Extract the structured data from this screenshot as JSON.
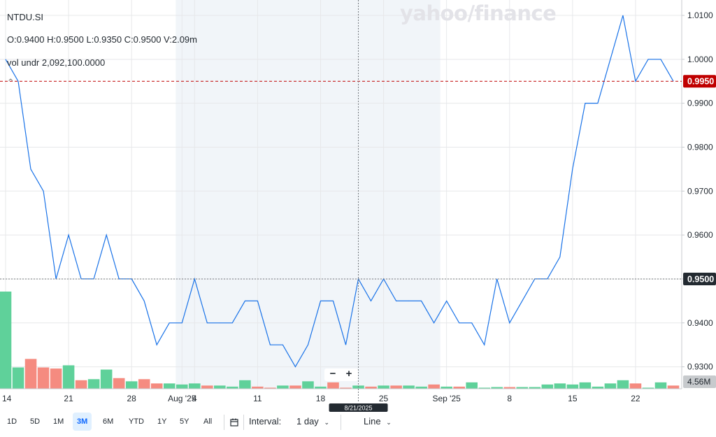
{
  "watermark": "yahoo/finance",
  "info": {
    "symbol": "NTDU.SI",
    "ohlc": "O:0.9400   H:0.9500   L:0.9350   C:0.9500   V:2.09m",
    "volume_line": "vol undr   2,092,100.0000"
  },
  "chart_data": {
    "type": "line",
    "symbol": "NTDU.SI",
    "x": [
      "2025-07-14",
      "2025-07-15",
      "2025-07-16",
      "2025-07-17",
      "2025-07-18",
      "2025-07-21",
      "2025-07-22",
      "2025-07-23",
      "2025-07-24",
      "2025-07-25",
      "2025-07-28",
      "2025-07-29",
      "2025-07-30",
      "2025-07-31",
      "2025-08-01",
      "2025-08-04",
      "2025-08-05",
      "2025-08-06",
      "2025-08-07",
      "2025-08-08",
      "2025-08-11",
      "2025-08-12",
      "2025-08-13",
      "2025-08-14",
      "2025-08-15",
      "2025-08-18",
      "2025-08-19",
      "2025-08-20",
      "2025-08-21",
      "2025-08-22",
      "2025-08-25",
      "2025-08-26",
      "2025-08-27",
      "2025-08-28",
      "2025-08-29",
      "2025-09-01",
      "2025-09-02",
      "2025-09-03",
      "2025-09-04",
      "2025-09-05",
      "2025-09-08",
      "2025-09-09",
      "2025-09-10",
      "2025-09-11",
      "2025-09-12",
      "2025-09-15",
      "2025-09-16",
      "2025-09-17",
      "2025-09-18",
      "2025-09-19",
      "2025-09-22",
      "2025-09-23",
      "2025-09-24",
      "2025-09-25"
    ],
    "series": [
      {
        "values": [
          1.0,
          0.995,
          0.975,
          0.97,
          0.95,
          0.96,
          0.95,
          0.95,
          0.96,
          0.95,
          0.95,
          0.945,
          0.935,
          0.94,
          0.94,
          0.95,
          0.94,
          0.94,
          0.94,
          0.945,
          0.945,
          0.935,
          0.935,
          0.93,
          0.935,
          0.945,
          0.945,
          0.935,
          0.95,
          0.945,
          0.95,
          0.945,
          0.945,
          0.945,
          0.94,
          0.945,
          0.94,
          0.94,
          0.935,
          0.95,
          0.94,
          0.945,
          0.95,
          0.95,
          0.955,
          0.975,
          0.99,
          0.99,
          1.0,
          1.01,
          0.995,
          1.0,
          1.0,
          0.995
        ],
        "color": "#1a73e8"
      }
    ],
    "volume": {
      "values": [
        4.56,
        1.0,
        1.4,
        1.0,
        0.95,
        1.1,
        0.4,
        0.45,
        0.9,
        0.5,
        0.35,
        0.45,
        0.25,
        0.25,
        0.2,
        0.25,
        0.15,
        0.15,
        0.1,
        0.4,
        0.1,
        0.05,
        0.15,
        0.15,
        0.35,
        0.1,
        0.3,
        0.05,
        0.15,
        0.1,
        0.15,
        0.15,
        0.15,
        0.1,
        0.2,
        0.1,
        0.1,
        0.3,
        0.05,
        0.08,
        0.08,
        0.08,
        0.08,
        0.2,
        0.25,
        0.2,
        0.3,
        0.1,
        0.25,
        0.4,
        0.25,
        0.05,
        0.3,
        0.15
      ],
      "directions": [
        "up",
        "up",
        "down",
        "down",
        "down",
        "up",
        "down",
        "up",
        "up",
        "down",
        "up",
        "down",
        "down",
        "up",
        "up",
        "up",
        "down",
        "up",
        "up",
        "up",
        "down",
        "down",
        "up",
        "down",
        "up",
        "up",
        "down",
        "down",
        "up",
        "down",
        "up",
        "down",
        "up",
        "up",
        "down",
        "up",
        "down",
        "up",
        "up",
        "up",
        "down",
        "up",
        "up",
        "up",
        "up",
        "up",
        "up",
        "up",
        "up",
        "up",
        "down",
        "up",
        "up",
        "down"
      ],
      "up_color": "#5fd19a",
      "down_color": "#f58b80",
      "max_label": "4.56M"
    },
    "ylim": [
      0.925,
      1.0135
    ],
    "yticks": [
      "1.0100",
      "1.0000",
      "0.9900",
      "0.9800",
      "0.9700",
      "0.9600",
      "0.9500",
      "0.9400",
      "0.9300"
    ],
    "xtick_labels": [
      {
        "date": "2025-07-14",
        "label": "14"
      },
      {
        "date": "2025-07-21",
        "label": "21"
      },
      {
        "date": "2025-07-28",
        "label": "28"
      },
      {
        "date": "2025-08-01",
        "label": "Aug '25"
      },
      {
        "date": "2025-08-04",
        "label": "4"
      },
      {
        "date": "2025-08-11",
        "label": "11"
      },
      {
        "date": "2025-08-18",
        "label": "18"
      },
      {
        "date": "2025-08-25",
        "label": "25"
      },
      {
        "date": "2025-09-01",
        "label": "Sep '25"
      },
      {
        "date": "2025-09-08",
        "label": "8"
      },
      {
        "date": "2025-09-15",
        "label": "15"
      },
      {
        "date": "2025-09-22",
        "label": "22"
      }
    ],
    "weekend_shading": "alternating months",
    "current_price": {
      "value": 0.995,
      "label": "0.9950",
      "color": "#c00000"
    },
    "crosshair": {
      "date": "2025-08-21",
      "value": 0.95,
      "price_label": "0.9500",
      "date_label": "8/21/2025"
    },
    "grid": true
  },
  "toolbar": {
    "ranges": [
      "1D",
      "5D",
      "1M",
      "3M",
      "6M",
      "YTD",
      "1Y",
      "5Y",
      "All"
    ],
    "active_range": "3M",
    "interval_label": "Interval:",
    "interval_value": "1 day",
    "chart_type": "Line"
  }
}
